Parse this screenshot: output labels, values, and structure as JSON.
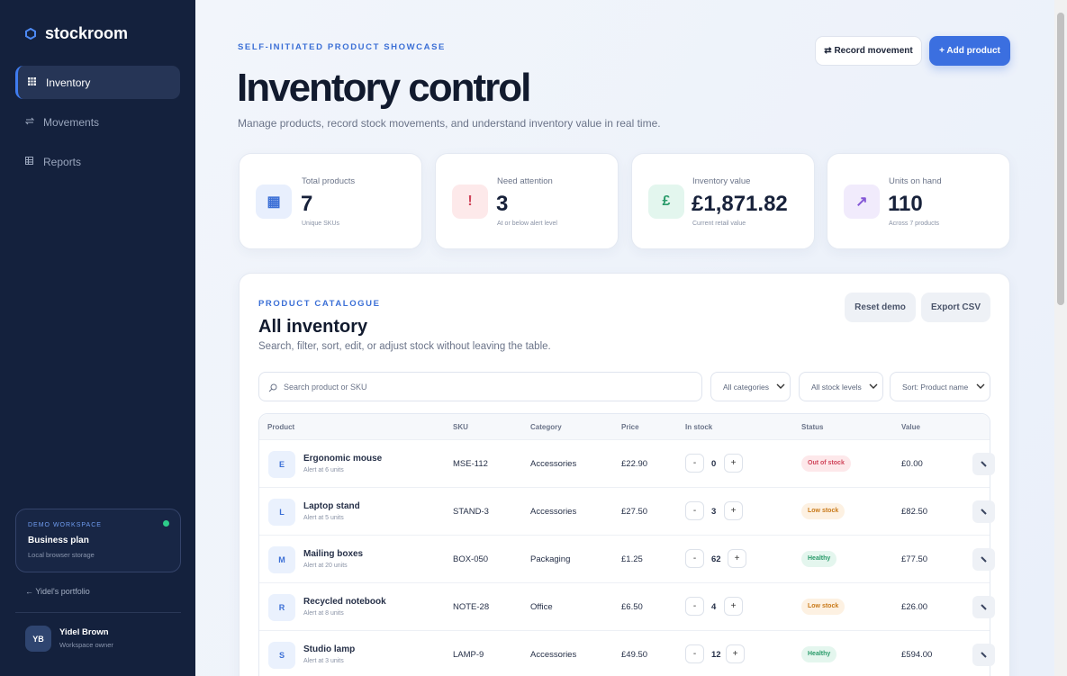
{
  "brand": "stockroom",
  "nav": [
    "Inventory",
    "Movements",
    "Reports"
  ],
  "workspace": {
    "label": "DEMO WORKSPACE",
    "plan": "Business plan",
    "storage": "Local browser storage"
  },
  "portfolio_link": "← Yidel's portfolio",
  "user": {
    "initials": "YB",
    "name": "Yidel Brown",
    "role": "Workspace owner"
  },
  "header": {
    "eyebrow": "SELF-INITIATED PRODUCT SHOWCASE",
    "title": "Inventory control",
    "subtitle": "Manage products, record stock movements, and understand inventory value in real time.",
    "buttons": [
      "⇄ Record movement",
      "+ Add product"
    ]
  },
  "stats": [
    {
      "icon": "▦",
      "label": "Total products",
      "value": 7,
      "note": "Unique SKUs"
    },
    {
      "icon": "!",
      "label": "Need attention",
      "value": 3,
      "note": "At or below alert level"
    },
    {
      "icon": "£",
      "label": "Inventory value",
      "value": "£1,871.82",
      "note": "Current retail value"
    },
    {
      "icon": "↗",
      "label": "Units on hand",
      "value": 110,
      "note": "Across 7 products"
    }
  ],
  "catalogue": {
    "eyebrow": "PRODUCT CATALOGUE",
    "title": "All inventory",
    "subtitle": "Search, filter, sort, edit, or adjust stock without leaving the table.",
    "buttons": [
      "Reset demo",
      "Export CSV"
    ],
    "search_placeholder": "Search product or SKU",
    "filters": [
      "All categories",
      "All stock levels",
      "Sort: Product name"
    ]
  },
  "table": {
    "headers": [
      "Product",
      "SKU",
      "Category",
      "Price",
      "In stock",
      "Status",
      "Value"
    ],
    "stepper": [
      "-",
      "+"
    ],
    "rows": [
      {
        "initial": "E",
        "name": "Ergonomic mouse",
        "alert": "Alert at 6 units",
        "sku": "MSE-112",
        "category": "Accessories",
        "price": "£22.90",
        "stock": 0,
        "status": "Out of stock",
        "value": "£0.00"
      },
      {
        "initial": "L",
        "name": "Laptop stand",
        "alert": "Alert at 5 units",
        "sku": "STAND-3",
        "category": "Accessories",
        "price": "£27.50",
        "stock": 3,
        "status": "Low stock",
        "value": "£82.50"
      },
      {
        "initial": "M",
        "name": "Mailing boxes",
        "alert": "Alert at 20 units",
        "sku": "BOX-050",
        "category": "Packaging",
        "price": "£1.25",
        "stock": 62,
        "status": "Healthy",
        "value": "£77.50"
      },
      {
        "initial": "R",
        "name": "Recycled notebook",
        "alert": "Alert at 8 units",
        "sku": "NOTE-28",
        "category": "Office",
        "price": "£6.50",
        "stock": 4,
        "status": "Low stock",
        "value": "£26.00"
      },
      {
        "initial": "S",
        "name": "Studio lamp",
        "alert": "Alert at 3 units",
        "sku": "LAMP-9",
        "category": "Accessories",
        "price": "£49.50",
        "stock": 12,
        "status": "Healthy",
        "value": "£594.00"
      }
    ]
  }
}
